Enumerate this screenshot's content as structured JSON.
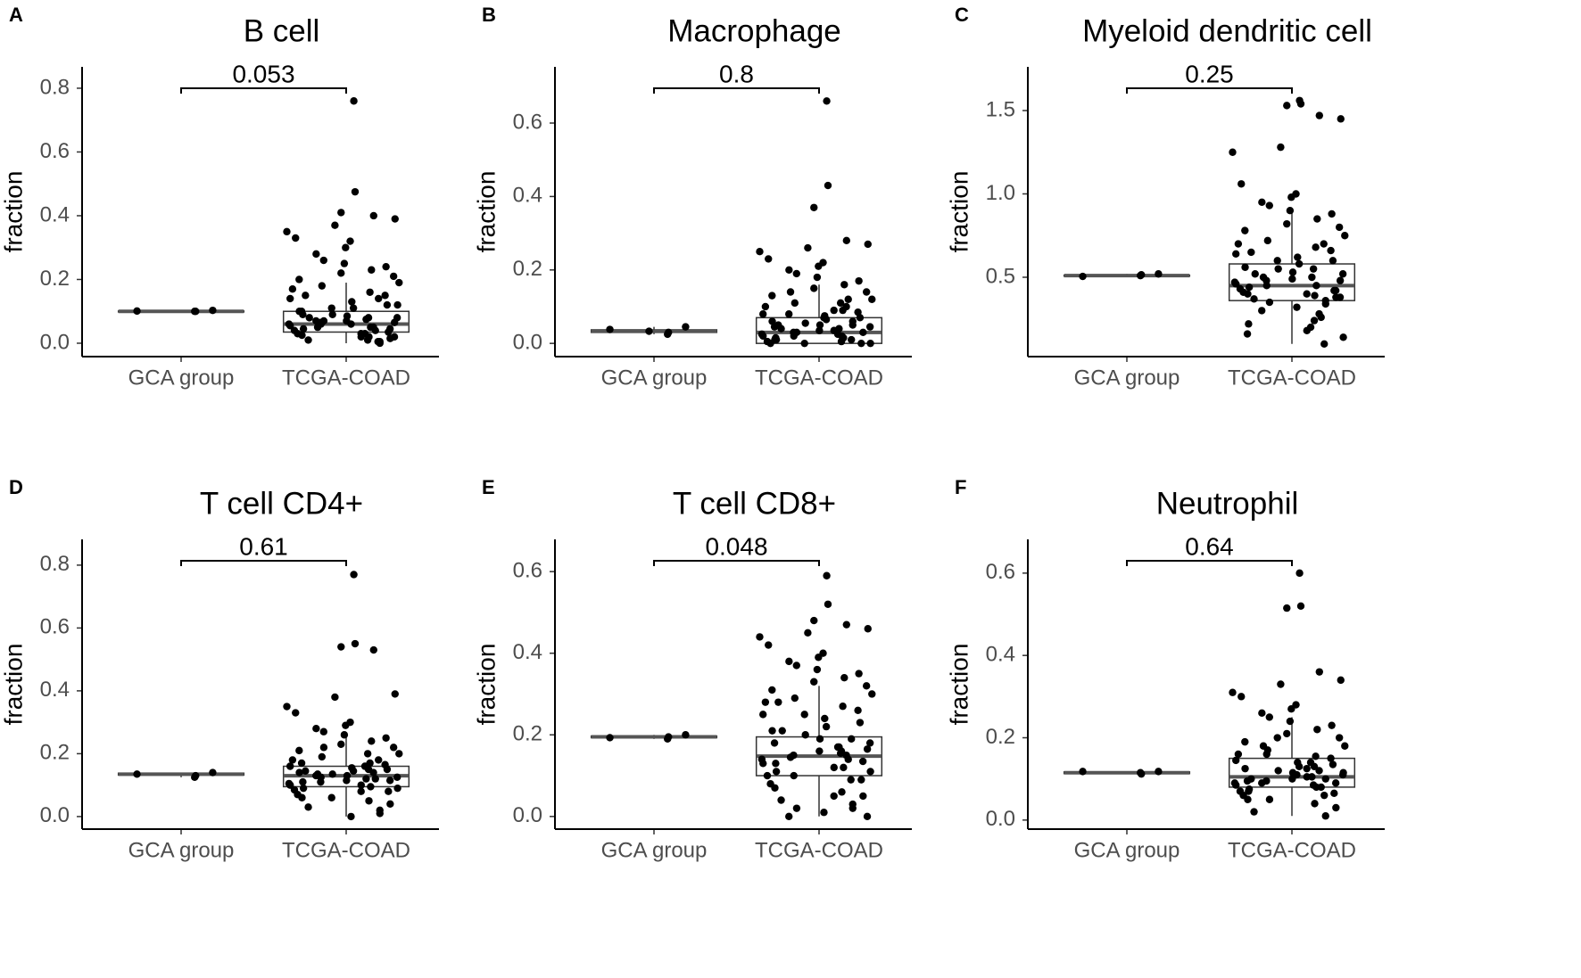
{
  "chart_data": [
    {
      "type": "box",
      "panel": "A",
      "title": "B cell",
      "ylabel": "fraction",
      "categories": [
        "GCA group",
        "TCGA-COAD"
      ],
      "ylim": [
        -0.042,
        0.867
      ],
      "yticks": [
        {
          "value": 0,
          "label": "0.0"
        },
        0.2,
        0.4,
        0.6,
        0.8
      ],
      "annotation": "0.053",
      "color": "#000000",
      "boxes": [
        {
          "min": 0.098,
          "q1": 0.099,
          "median": 0.1,
          "q3": 0.101,
          "max": 0.103
        },
        {
          "min": 0,
          "q1": 0.035,
          "median": 0.06,
          "q3": 0.1,
          "max": 0.19
        }
      ],
      "points": [
        [
          0.103,
          0.1,
          0.1,
          0.101
        ],
        [
          0.76,
          0.475,
          0.41,
          0.4,
          0.39,
          0.37,
          0.35,
          0.33,
          0.32,
          0.3,
          0.28,
          0.26,
          0.25,
          0.24,
          0.23,
          0.22,
          0.21,
          0.2,
          0.19,
          0.18,
          0.17,
          0.16,
          0.15,
          0.14,
          0.13,
          0.12,
          0.11,
          0.1,
          0.09,
          0.085,
          0.08,
          0.075,
          0.07,
          0.065,
          0.06,
          0.055,
          0.05,
          0.045,
          0.04,
          0.035,
          0.03,
          0.025,
          0.02,
          0.015,
          0.01,
          0.005,
          0,
          0.06,
          0.07,
          0.05,
          0.04,
          0.08,
          0.09,
          0.03,
          0.02,
          0.1,
          0.12,
          0.14,
          0.06,
          0.05,
          0.01,
          0.03,
          0.07,
          0.11,
          0.15,
          0.045,
          0.065,
          0.02,
          0.08,
          0.005
        ]
      ]
    },
    {
      "type": "box",
      "panel": "B",
      "title": "Macrophage",
      "ylabel": "fraction",
      "categories": [
        "GCA group",
        "TCGA-COAD"
      ],
      "ylim": [
        -0.036,
        0.753
      ],
      "yticks": [
        {
          "value": 0,
          "label": "0.0"
        },
        0.2,
        0.4,
        0.6
      ],
      "annotation": "0.8",
      "color": "#000000",
      "boxes": [
        {
          "min": 0.025,
          "q1": 0.03,
          "median": 0.033,
          "q3": 0.037,
          "max": 0.045
        },
        {
          "min": 0,
          "q1": 0.0,
          "median": 0.03,
          "q3": 0.07,
          "max": 0.16
        }
      ],
      "points": [
        [
          0.045,
          0.03,
          0.025,
          0.038,
          0.033
        ],
        [
          0.66,
          0.43,
          0.37,
          0.28,
          0.27,
          0.26,
          0.25,
          0.23,
          0.22,
          0.21,
          0.2,
          0.19,
          0.18,
          0.17,
          0.16,
          0.15,
          0.14,
          0.13,
          0.12,
          0.11,
          0.1,
          0.09,
          0.085,
          0.08,
          0.075,
          0.07,
          0.065,
          0.06,
          0.055,
          0.05,
          0.045,
          0.04,
          0.035,
          0.03,
          0.025,
          0.02,
          0.015,
          0.01,
          0.005,
          0,
          0,
          0.01,
          0.02,
          0.03,
          0.04,
          0.05,
          0.06,
          0.07,
          0.08,
          0.1,
          0.12,
          0.005,
          0.015,
          0.025,
          0.035,
          0.045,
          0.0,
          0.01,
          0.02,
          0.14,
          0.11,
          0.09,
          0.03,
          0.0,
          0.05
        ]
      ]
    },
    {
      "type": "box",
      "panel": "C",
      "title": "Myeloid dendritic cell",
      "ylabel": "fraction",
      "categories": [
        "GCA group",
        "TCGA-COAD"
      ],
      "ylim": [
        0.024,
        1.762
      ],
      "yticks": [
        0.5,
        {
          "value": 1,
          "label": "1.0"
        },
        1.5
      ],
      "annotation": "0.25",
      "color": "#000000",
      "boxes": [
        {
          "min": 0.505,
          "q1": 0.508,
          "median": 0.51,
          "q3": 0.512,
          "max": 0.52
        },
        {
          "min": 0.1,
          "q1": 0.36,
          "median": 0.45,
          "q3": 0.58,
          "max": 0.9
        }
      ],
      "points": [
        [
          0.52,
          0.515,
          0.51,
          0.505
        ],
        [
          1.56,
          1.54,
          1.53,
          1.47,
          1.45,
          1.28,
          1.25,
          1.06,
          1.0,
          0.98,
          0.95,
          0.93,
          0.9,
          0.88,
          0.85,
          0.82,
          0.8,
          0.78,
          0.75,
          0.72,
          0.7,
          0.68,
          0.66,
          0.64,
          0.62,
          0.6,
          0.58,
          0.56,
          0.55,
          0.53,
          0.52,
          0.5,
          0.49,
          0.48,
          0.47,
          0.46,
          0.45,
          0.44,
          0.43,
          0.42,
          0.41,
          0.4,
          0.39,
          0.38,
          0.37,
          0.36,
          0.34,
          0.32,
          0.3,
          0.28,
          0.26,
          0.24,
          0.22,
          0.2,
          0.18,
          0.16,
          0.14,
          0.1,
          0.45,
          0.5,
          0.55,
          0.4,
          0.35,
          0.6,
          0.65,
          0.42,
          0.48,
          0.38,
          0.52,
          0.7
        ]
      ]
    },
    {
      "type": "box",
      "panel": "D",
      "title": "T cell CD4+",
      "ylabel": "fraction",
      "categories": [
        "GCA group",
        "TCGA-COAD"
      ],
      "ylim": [
        -0.04,
        0.882
      ],
      "yticks": [
        {
          "value": 0,
          "label": "0.0"
        },
        0.2,
        0.4,
        0.6,
        0.8
      ],
      "annotation": "0.61",
      "color": "#000000",
      "boxes": [
        {
          "min": 0.125,
          "q1": 0.132,
          "median": 0.135,
          "q3": 0.138,
          "max": 0.14
        },
        {
          "min": 0,
          "q1": 0.095,
          "median": 0.13,
          "q3": 0.16,
          "max": 0.26
        }
      ],
      "points": [
        [
          0.14,
          0.13,
          0.125,
          0.135
        ],
        [
          0.77,
          0.55,
          0.54,
          0.53,
          0.39,
          0.38,
          0.35,
          0.33,
          0.3,
          0.29,
          0.28,
          0.27,
          0.26,
          0.25,
          0.24,
          0.23,
          0.22,
          0.21,
          0.2,
          0.19,
          0.18,
          0.17,
          0.165,
          0.16,
          0.155,
          0.15,
          0.145,
          0.14,
          0.135,
          0.13,
          0.125,
          0.12,
          0.115,
          0.11,
          0.105,
          0.1,
          0.095,
          0.09,
          0.085,
          0.08,
          0.07,
          0.06,
          0.05,
          0.04,
          0.03,
          0.02,
          0.01,
          0,
          0.13,
          0.14,
          0.12,
          0.15,
          0.11,
          0.16,
          0.1,
          0.17,
          0.09,
          0.18,
          0.125,
          0.135,
          0.2,
          0.08,
          0.22,
          0.06,
          0.145,
          0.115
        ]
      ]
    },
    {
      "type": "box",
      "panel": "E",
      "title": "T cell CD8+",
      "ylabel": "fraction",
      "categories": [
        "GCA group",
        "TCGA-COAD"
      ],
      "ylim": [
        -0.031,
        0.679
      ],
      "yticks": [
        {
          "value": 0,
          "label": "0.0"
        },
        0.2,
        0.4,
        0.6
      ],
      "annotation": "0.048",
      "color": "#000000",
      "boxes": [
        {
          "min": 0.19,
          "q1": 0.193,
          "median": 0.195,
          "q3": 0.197,
          "max": 0.2
        },
        {
          "min": 0,
          "q1": 0.1,
          "median": 0.148,
          "q3": 0.195,
          "max": 0.32
        }
      ],
      "points": [
        [
          0.2,
          0.195,
          0.19,
          0.193
        ],
        [
          0.59,
          0.52,
          0.48,
          0.47,
          0.46,
          0.45,
          0.44,
          0.42,
          0.4,
          0.39,
          0.38,
          0.37,
          0.36,
          0.35,
          0.34,
          0.33,
          0.32,
          0.31,
          0.3,
          0.29,
          0.28,
          0.27,
          0.26,
          0.25,
          0.24,
          0.23,
          0.22,
          0.21,
          0.2,
          0.19,
          0.18,
          0.17,
          0.16,
          0.15,
          0.14,
          0.13,
          0.12,
          0.11,
          0.1,
          0.09,
          0.08,
          0.07,
          0.06,
          0.05,
          0.04,
          0.03,
          0.02,
          0.01,
          0,
          0.15,
          0.14,
          0.16,
          0.13,
          0.17,
          0.12,
          0.18,
          0.11,
          0.19,
          0.1,
          0.145,
          0.155,
          0.05,
          0.02,
          0.25,
          0.28,
          0.135,
          0.165,
          0.0,
          0.21,
          0.09
        ]
      ]
    },
    {
      "type": "box",
      "panel": "F",
      "title": "Neutrophil",
      "ylabel": "fraction",
      "categories": [
        "GCA group",
        "TCGA-COAD"
      ],
      "ylim": [
        -0.022,
        0.682
      ],
      "yticks": [
        {
          "value": 0,
          "label": "0.0"
        },
        0.2,
        0.4,
        0.6
      ],
      "annotation": "0.64",
      "color": "#000000",
      "boxes": [
        {
          "min": 0.112,
          "q1": 0.113,
          "median": 0.115,
          "q3": 0.117,
          "max": 0.118
        },
        {
          "min": 0.01,
          "q1": 0.08,
          "median": 0.105,
          "q3": 0.15,
          "max": 0.25
        }
      ],
      "points": [
        [
          0.118,
          0.112,
          0.115,
          0.118
        ],
        [
          0.6,
          0.52,
          0.515,
          0.36,
          0.34,
          0.33,
          0.31,
          0.3,
          0.28,
          0.27,
          0.26,
          0.25,
          0.24,
          0.23,
          0.22,
          0.21,
          0.2,
          0.19,
          0.18,
          0.17,
          0.16,
          0.155,
          0.15,
          0.145,
          0.14,
          0.135,
          0.13,
          0.125,
          0.12,
          0.115,
          0.11,
          0.105,
          0.1,
          0.095,
          0.09,
          0.085,
          0.08,
          0.075,
          0.07,
          0.065,
          0.06,
          0.05,
          0.04,
          0.03,
          0.02,
          0.01,
          0.1,
          0.11,
          0.09,
          0.12,
          0.08,
          0.13,
          0.07,
          0.14,
          0.105,
          0.095,
          0.115,
          0.06,
          0.16,
          0.18,
          0.085,
          0.125,
          0.05,
          0.2,
          0.1,
          0.09
        ]
      ]
    }
  ]
}
